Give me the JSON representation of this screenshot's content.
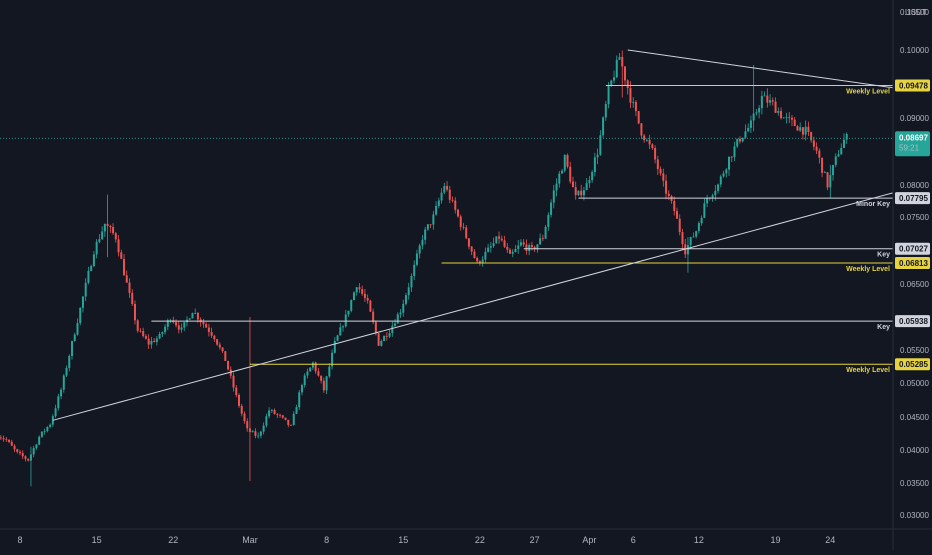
{
  "currency": "USDT",
  "colors": {
    "background": "#131722",
    "up": "#26a69a",
    "down": "#ef5350",
    "white_line": "#d1d4dc",
    "yellow_line": "#e6d33f",
    "current_price": "#26a69a"
  },
  "current_price": {
    "value": 0.08697,
    "display": "0.08697",
    "countdown": "59:21"
  },
  "chart_data": {
    "type": "candlestick",
    "y_axis": {
      "range": [
        0.028,
        0.107
      ],
      "ticks": [
        "0.10500",
        "0.10000",
        "0.09000",
        "0.08000",
        "0.07500",
        "0.06500",
        "0.05500",
        "0.05000",
        "0.04500",
        "0.04000",
        "0.03500",
        "0.03000"
      ],
      "tick_values": [
        0.105,
        0.1,
        0.09,
        0.08,
        0.075,
        0.065,
        0.055,
        0.05,
        0.045,
        0.04,
        0.035,
        0.03
      ]
    },
    "x_axis": {
      "ticks": [
        "8",
        "15",
        "22",
        "Mar",
        "8",
        "15",
        "22",
        "27",
        "Apr",
        "6",
        "12",
        "19",
        "24"
      ],
      "tick_days": [
        0,
        7,
        14,
        21,
        28,
        35,
        42,
        47,
        52,
        56,
        62,
        69,
        74
      ]
    },
    "price_path": [
      [
        -2,
        0.0425
      ],
      [
        -1,
        0.0415
      ],
      [
        0,
        0.0395
      ],
      [
        1,
        0.0385
      ],
      [
        2,
        0.042
      ],
      [
        3,
        0.044
      ],
      [
        4,
        0.049
      ],
      [
        5,
        0.056
      ],
      [
        6,
        0.063
      ],
      [
        7,
        0.07
      ],
      [
        8,
        0.074
      ],
      [
        9,
        0.072
      ],
      [
        10,
        0.065
      ],
      [
        11,
        0.058
      ],
      [
        12,
        0.056
      ],
      [
        13,
        0.057
      ],
      [
        14,
        0.06
      ],
      [
        15,
        0.058
      ],
      [
        16,
        0.061
      ],
      [
        17,
        0.059
      ],
      [
        18,
        0.057
      ],
      [
        19,
        0.0535
      ],
      [
        20,
        0.048
      ],
      [
        21,
        0.043
      ],
      [
        22,
        0.042
      ],
      [
        23,
        0.046
      ],
      [
        24,
        0.045
      ],
      [
        25,
        0.0435
      ],
      [
        26,
        0.05
      ],
      [
        27,
        0.053
      ],
      [
        28,
        0.049
      ],
      [
        29,
        0.056
      ],
      [
        30,
        0.06
      ],
      [
        31,
        0.065
      ],
      [
        32,
        0.062
      ],
      [
        33,
        0.056
      ],
      [
        34,
        0.058
      ],
      [
        35,
        0.061
      ],
      [
        36,
        0.066
      ],
      [
        37,
        0.072
      ],
      [
        38,
        0.075
      ],
      [
        39,
        0.08
      ],
      [
        40,
        0.076
      ],
      [
        41,
        0.072
      ],
      [
        42,
        0.068
      ],
      [
        43,
        0.07
      ],
      [
        44,
        0.072
      ],
      [
        45,
        0.069
      ],
      [
        46,
        0.071
      ],
      [
        47,
        0.07
      ],
      [
        48,
        0.072
      ],
      [
        49,
        0.079
      ],
      [
        50,
        0.084
      ],
      [
        51,
        0.078
      ],
      [
        52,
        0.08
      ],
      [
        53,
        0.085
      ],
      [
        54,
        0.094
      ],
      [
        55,
        0.099
      ],
      [
        56,
        0.093
      ],
      [
        57,
        0.088
      ],
      [
        58,
        0.085
      ],
      [
        59,
        0.08
      ],
      [
        60,
        0.076
      ],
      [
        61,
        0.07
      ],
      [
        62,
        0.073
      ],
      [
        63,
        0.078
      ],
      [
        64,
        0.08
      ],
      [
        65,
        0.084
      ],
      [
        66,
        0.087
      ],
      [
        67,
        0.089
      ],
      [
        68,
        0.093
      ],
      [
        69,
        0.092
      ],
      [
        70,
        0.09
      ],
      [
        71,
        0.089
      ],
      [
        72,
        0.088
      ],
      [
        73,
        0.085
      ],
      [
        74,
        0.08
      ],
      [
        75,
        0.085
      ],
      [
        75.6,
        0.087
      ]
    ],
    "extremes": [
      {
        "day": 1,
        "high": 0.0405,
        "low": 0.0345
      },
      {
        "day": 8,
        "high": 0.0785,
        "low": 0.069
      },
      {
        "day": 21,
        "high": 0.06,
        "low": 0.0353
      },
      {
        "day": 55,
        "high": 0.0995,
        "low": 0.093
      },
      {
        "day": 61,
        "high": 0.072,
        "low": 0.0667
      },
      {
        "day": 67,
        "high": 0.0978,
        "low": 0.088
      },
      {
        "day": 74,
        "high": 0.083,
        "low": 0.078
      }
    ],
    "levels": [
      {
        "price": 0.09478,
        "display": "0.09478",
        "label": "Weekly Level",
        "color": "yellow",
        "start_day": 53.5
      },
      {
        "price": 0.07795,
        "display": "0.07795",
        "label": "Minor Key",
        "color": "white",
        "start_day": 51
      },
      {
        "price": 0.07027,
        "display": "0.07027",
        "label": "Key",
        "color": "white",
        "start_day": 46
      },
      {
        "price": 0.06813,
        "display": "0.06813",
        "label": "Weekly Level",
        "color": "yellow",
        "start_day": 38.5
      },
      {
        "price": 0.05938,
        "display": "0.05938",
        "label": "Key",
        "color": "white",
        "start_day": 12
      },
      {
        "price": 0.05285,
        "display": "0.05285",
        "label": "Weekly Level",
        "color": "yellow",
        "start_day": 21
      }
    ],
    "trendlines": [
      {
        "from": [
          3,
          0.0445
        ],
        "to": [
          100,
          0.0878
        ],
        "color": "white"
      },
      {
        "from": [
          55.5,
          0.1
        ],
        "to": [
          100,
          0.0898
        ],
        "color": "white"
      }
    ]
  }
}
